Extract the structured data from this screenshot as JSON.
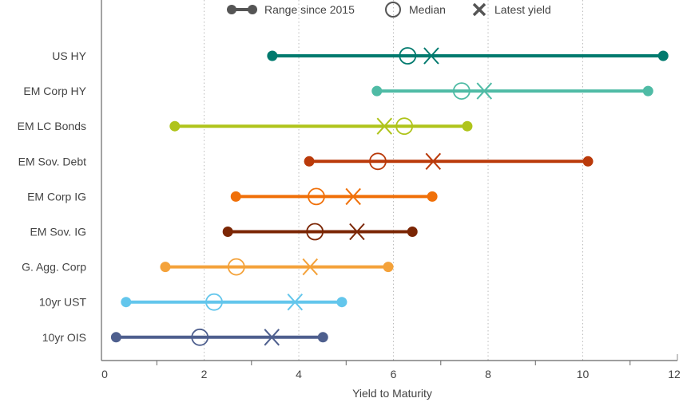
{
  "chart_data": {
    "type": "dumbbell",
    "title": "",
    "xlabel": "Yield to Maturity",
    "ylabel": "",
    "xlim": [
      -0.17,
      12
    ],
    "xticks": [
      0,
      2,
      4,
      6,
      8,
      10,
      12
    ],
    "grid": "vertical dotted at even ticks",
    "legend": {
      "placement": "top",
      "items": [
        {
          "label": "Range since 2015",
          "marker": "dumbbell"
        },
        {
          "label": "Median",
          "marker": "circle"
        },
        {
          "label": "Latest yield",
          "marker": "cross"
        }
      ]
    },
    "series": [
      {
        "category": "US HY",
        "color": "#007A6E",
        "min": 3.44,
        "median": 6.3,
        "latest": 6.8,
        "max": 11.7
      },
      {
        "category": "EM Corp HY",
        "color": "#4FBBA5",
        "min": 5.65,
        "median": 7.44,
        "latest": 7.92,
        "max": 11.38
      },
      {
        "category": "EM LC Bonds",
        "color": "#AFC41B",
        "min": 1.38,
        "median": 6.23,
        "latest": 5.81,
        "max": 7.56
      },
      {
        "category": "EM Sov. Debt",
        "color": "#BA3A0A",
        "min": 4.22,
        "median": 5.67,
        "latest": 6.84,
        "max": 10.11
      },
      {
        "category": "EM Corp IG",
        "color": "#F07009",
        "min": 2.67,
        "median": 4.37,
        "latest": 5.15,
        "max": 6.82
      },
      {
        "category": "EM Sov. IG",
        "color": "#7B2604",
        "min": 2.5,
        "median": 4.34,
        "latest": 5.23,
        "max": 6.4
      },
      {
        "category": "G. Agg. Corp",
        "color": "#F4A23A",
        "min": 1.18,
        "median": 2.68,
        "latest": 4.24,
        "max": 5.89
      },
      {
        "category": "10yr UST",
        "color": "#63C6EC",
        "min": 0.35,
        "median": 2.21,
        "latest": 3.92,
        "max": 4.91
      },
      {
        "category": "10yr OIS",
        "color": "#4E5F8E",
        "min": 0.14,
        "median": 1.91,
        "latest": 3.43,
        "max": 4.51
      }
    ]
  }
}
